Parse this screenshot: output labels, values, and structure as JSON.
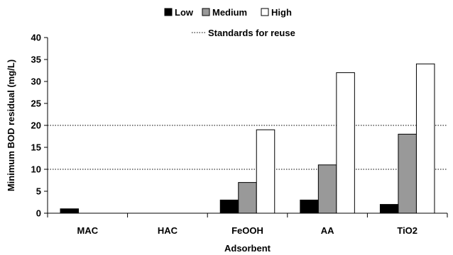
{
  "chart_data": {
    "type": "bar",
    "categories": [
      "MAC",
      "HAC",
      "FeOOH",
      "AA",
      "TiO2"
    ],
    "series": [
      {
        "name": "Low",
        "color": "#000000",
        "values": [
          1,
          0,
          3,
          3,
          2
        ]
      },
      {
        "name": "Medium",
        "color": "#999999",
        "values": [
          0,
          0,
          7,
          11,
          18
        ]
      },
      {
        "name": "High",
        "color": "#ffffff",
        "values": [
          0,
          0,
          19,
          32,
          34
        ]
      }
    ],
    "reference_lines": {
      "name": "Standards for reuse",
      "values": [
        10,
        20
      ],
      "style": "dotted"
    },
    "xlabel": "Adsorbent",
    "ylabel": "Minimum BOD residual (mg/L)",
    "ylim": [
      0,
      40
    ],
    "yticks": [
      0,
      5,
      10,
      15,
      20,
      25,
      30,
      35,
      40
    ],
    "grid": false,
    "legend_position": "top"
  }
}
